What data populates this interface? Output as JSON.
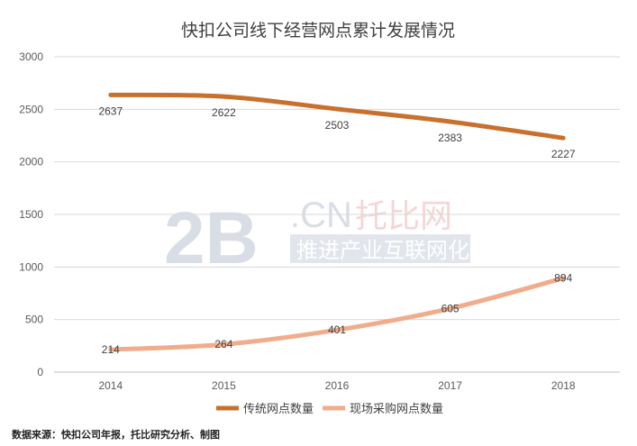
{
  "chart_data": {
    "type": "line",
    "title": "快扣公司线下经营网点累计发展情况",
    "categories": [
      "2014",
      "2015",
      "2016",
      "2017",
      "2018"
    ],
    "ylim": [
      0,
      3000
    ],
    "yticks": [
      0,
      500,
      1000,
      1500,
      2000,
      2500,
      3000
    ],
    "grid": true,
    "legend_position": "bottom",
    "series": [
      {
        "name": "传统网点数量",
        "values": [
          2637,
          2622,
          2503,
          2383,
          2227
        ],
        "color": "#c8702e"
      },
      {
        "name": "现场采购网点数量",
        "values": [
          214,
          264,
          401,
          605,
          894
        ],
        "color": "#f0ad8c"
      }
    ],
    "source": "数据来源：快扣公司年报，托比研究分析、制图"
  },
  "watermark": {
    "logo_big": "2B",
    "logo_cn": ".CN",
    "brand": "托比网",
    "slogan": "推进产业互联网化",
    "slogan_bg": "#e2e6ec"
  }
}
